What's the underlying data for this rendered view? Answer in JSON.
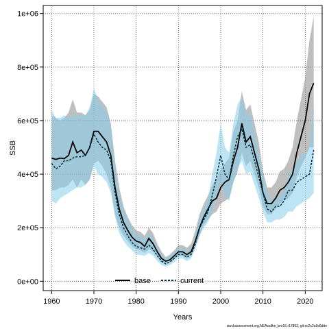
{
  "chart_data": {
    "type": "line",
    "xlabel": "Years",
    "ylabel": "SSB",
    "xlim": [
      1958,
      2024
    ],
    "ylim": [
      -35000,
      1030000
    ],
    "x_ticks": [
      1960,
      1970,
      1980,
      1990,
      2000,
      2010,
      2020
    ],
    "y_ticks": [
      0,
      200000,
      400000,
      600000,
      800000,
      1000000
    ],
    "y_tick_labels": [
      "0e+00",
      "2e+05",
      "4e+05",
      "6e+05",
      "8e+05",
      "1e+06"
    ],
    "grid": true,
    "legend_position": "bottom",
    "footer": "stockassessment.org,NEAsallhe_bnr15,r17802, git:ec2c2a0c6dde",
    "series": [
      {
        "name": "base",
        "color": "#000000",
        "line_style": "solid",
        "band_color": "#808080",
        "x": [
          1960,
          1961,
          1962,
          1963,
          1964,
          1965,
          1966,
          1967,
          1968,
          1969,
          1970,
          1971,
          1972,
          1973,
          1974,
          1975,
          1976,
          1977,
          1978,
          1979,
          1980,
          1981,
          1982,
          1983,
          1984,
          1985,
          1986,
          1987,
          1988,
          1989,
          1990,
          1991,
          1992,
          1993,
          1994,
          1995,
          1996,
          1997,
          1998,
          1999,
          2000,
          2001,
          2002,
          2003,
          2004,
          2005,
          2006,
          2007,
          2008,
          2009,
          2010,
          2011,
          2012,
          2013,
          2014,
          2015,
          2016,
          2017,
          2018,
          2019,
          2020,
          2021,
          2022
        ],
        "values": [
          460000,
          455000,
          460000,
          458000,
          470000,
          520000,
          480000,
          490000,
          470000,
          500000,
          560000,
          560000,
          540000,
          520000,
          470000,
          350000,
          270000,
          220000,
          190000,
          165000,
          150000,
          145000,
          130000,
          160000,
          140000,
          110000,
          85000,
          75000,
          80000,
          95000,
          110000,
          110000,
          100000,
          110000,
          150000,
          200000,
          240000,
          270000,
          300000,
          310000,
          350000,
          370000,
          380000,
          450000,
          500000,
          590000,
          520000,
          540000,
          480000,
          420000,
          330000,
          290000,
          290000,
          310000,
          340000,
          350000,
          370000,
          400000,
          480000,
          540000,
          600000,
          700000,
          740000
        ],
        "lower": [
          340000,
          340000,
          350000,
          350000,
          360000,
          380000,
          350000,
          380000,
          360000,
          380000,
          440000,
          450000,
          430000,
          400000,
          350000,
          250000,
          200000,
          170000,
          150000,
          130000,
          120000,
          115000,
          105000,
          120000,
          110000,
          90000,
          70000,
          65000,
          70000,
          85000,
          95000,
          95000,
          85000,
          95000,
          130000,
          170000,
          210000,
          230000,
          250000,
          260000,
          290000,
          300000,
          310000,
          370000,
          410000,
          480000,
          430000,
          450000,
          400000,
          350000,
          280000,
          250000,
          250000,
          270000,
          290000,
          300000,
          310000,
          330000,
          390000,
          430000,
          460000,
          500000,
          500000
        ],
        "upper": [
          620000,
          610000,
          600000,
          610000,
          630000,
          680000,
          630000,
          630000,
          620000,
          640000,
          700000,
          690000,
          670000,
          650000,
          590000,
          450000,
          350000,
          280000,
          240000,
          210000,
          190000,
          185000,
          170000,
          200000,
          180000,
          140000,
          110000,
          90000,
          100000,
          115000,
          135000,
          135000,
          125000,
          140000,
          190000,
          250000,
          290000,
          320000,
          360000,
          380000,
          420000,
          440000,
          460000,
          560000,
          600000,
          710000,
          640000,
          660000,
          590000,
          520000,
          410000,
          350000,
          350000,
          370000,
          410000,
          420000,
          450000,
          500000,
          600000,
          680000,
          760000,
          900000,
          990000
        ]
      },
      {
        "name": "current",
        "color": "#003344",
        "line_style": "dashed",
        "band_color": "#87CEEB",
        "x": [
          1960,
          1961,
          1962,
          1963,
          1964,
          1965,
          1966,
          1967,
          1968,
          1969,
          1970,
          1971,
          1972,
          1973,
          1974,
          1975,
          1976,
          1977,
          1978,
          1979,
          1980,
          1981,
          1982,
          1983,
          1984,
          1985,
          1986,
          1987,
          1988,
          1989,
          1990,
          1991,
          1992,
          1993,
          1994,
          1995,
          1996,
          1997,
          1998,
          1999,
          2000,
          2001,
          2002,
          2003,
          2004,
          2005,
          2006,
          2007,
          2008,
          2009,
          2010,
          2011,
          2012,
          2013,
          2014,
          2015,
          2016,
          2017,
          2018,
          2019,
          2020,
          2021,
          2022
        ],
        "values": [
          440000,
          420000,
          430000,
          450000,
          450000,
          460000,
          465000,
          465000,
          470000,
          500000,
          550000,
          520000,
          500000,
          490000,
          450000,
          330000,
          250000,
          200000,
          170000,
          145000,
          130000,
          125000,
          120000,
          135000,
          120000,
          95000,
          75000,
          65000,
          72000,
          85000,
          100000,
          100000,
          90000,
          100000,
          140000,
          200000,
          230000,
          260000,
          320000,
          390000,
          470000,
          400000,
          380000,
          470000,
          540000,
          570000,
          500000,
          510000,
          450000,
          390000,
          330000,
          270000,
          260000,
          280000,
          280000,
          300000,
          340000,
          340000,
          370000,
          380000,
          390000,
          400000,
          490000
        ],
        "lower": [
          300000,
          290000,
          310000,
          320000,
          330000,
          340000,
          350000,
          350000,
          360000,
          380000,
          430000,
          400000,
          390000,
          370000,
          330000,
          240000,
          180000,
          150000,
          130000,
          115000,
          100000,
          98000,
          95000,
          105000,
          95000,
          75000,
          60000,
          55000,
          60000,
          72000,
          85000,
          85000,
          75000,
          85000,
          120000,
          170000,
          200000,
          220000,
          260000,
          310000,
          370000,
          320000,
          300000,
          370000,
          420000,
          450000,
          400000,
          410000,
          360000,
          310000,
          260000,
          220000,
          220000,
          230000,
          230000,
          240000,
          260000,
          260000,
          280000,
          290000,
          300000,
          310000,
          330000
        ],
        "upper": [
          640000,
          610000,
          610000,
          620000,
          610000,
          620000,
          620000,
          620000,
          620000,
          650000,
          720000,
          680000,
          650000,
          640000,
          580000,
          430000,
          330000,
          270000,
          230000,
          200000,
          175000,
          170000,
          160000,
          180000,
          165000,
          125000,
          100000,
          85000,
          95000,
          108000,
          125000,
          125000,
          112000,
          120000,
          170000,
          240000,
          270000,
          310000,
          400000,
          480000,
          590000,
          500000,
          480000,
          590000,
          660000,
          690000,
          620000,
          630000,
          550000,
          480000,
          400000,
          330000,
          300000,
          320000,
          320000,
          340000,
          400000,
          410000,
          450000,
          470000,
          480000,
          500000,
          660000
        ]
      }
    ]
  }
}
